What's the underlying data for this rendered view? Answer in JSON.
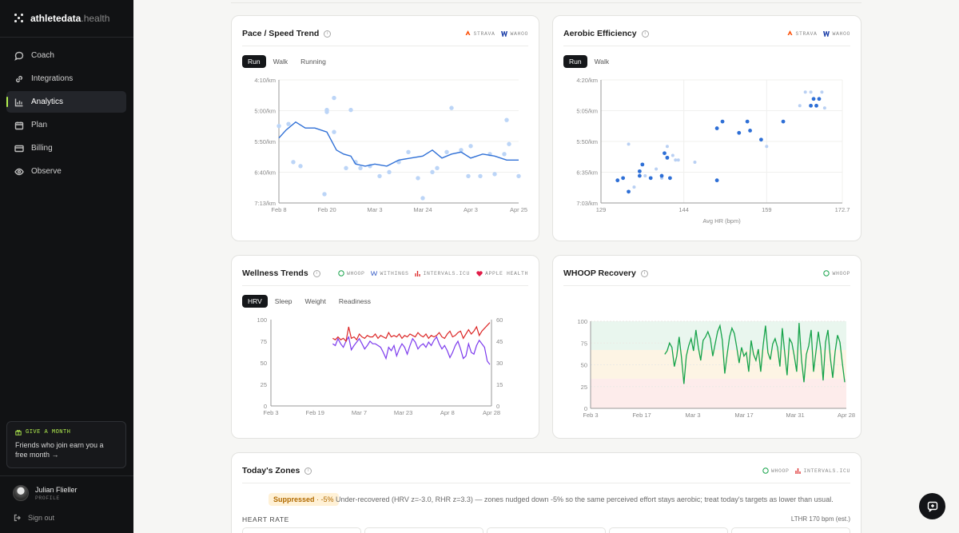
{
  "brand": {
    "name": "athletedata",
    "suffix": ".health"
  },
  "nav": {
    "items": [
      {
        "label": "Coach",
        "icon": "chat-bubble-icon",
        "active": false
      },
      {
        "label": "Integrations",
        "icon": "link-icon",
        "active": false
      },
      {
        "label": "Analytics",
        "icon": "bar-chart-icon",
        "active": true
      },
      {
        "label": "Plan",
        "icon": "calendar-icon",
        "active": false
      },
      {
        "label": "Billing",
        "icon": "credit-card-icon",
        "active": false
      },
      {
        "label": "Observe",
        "icon": "eye-icon",
        "active": false
      }
    ]
  },
  "promo": {
    "heading": "GIVE A MONTH",
    "text": "Friends who join earn you a free month →"
  },
  "user": {
    "name": "Julian Flieller",
    "role": "PROFILE"
  },
  "signout": "Sign out",
  "colors": {
    "accent": "#b3f050",
    "pace": "#2e6fd6",
    "pace_points": "#bcd5f7",
    "hrv": "#7c3aed",
    "rhr": "#dc2626",
    "recovery": "#16a34a"
  },
  "pace": {
    "title": "Pace / Speed Trend",
    "sources": [
      "STRAVA",
      "WAHOO"
    ],
    "tabs": [
      "Run",
      "Walk",
      "Running"
    ]
  },
  "aerobic": {
    "title": "Aerobic Efficiency",
    "sources": [
      "STRAVA",
      "WAHOO"
    ],
    "tabs": [
      "Run",
      "Walk"
    ],
    "xlabel": "Avg HR (bpm)"
  },
  "wellness": {
    "title": "Wellness Trends",
    "sources": [
      "WHOOP",
      "WITHINGS",
      "INTERVALS.ICU",
      "APPLE HEALTH"
    ],
    "tabs": [
      "HRV",
      "Sleep",
      "Weight",
      "Readiness"
    ]
  },
  "recovery": {
    "title": "WHOOP Recovery",
    "sources": [
      "WHOOP"
    ]
  },
  "zones": {
    "title": "Today's Zones",
    "sources": [
      "WHOOP",
      "INTERVALS.ICU"
    ],
    "badge_label": "Suppressed",
    "badge_value": "· -5%",
    "note": "Under-recovered (HRV z=-3.0, RHR z=3.3) — zones nudged down -5% so the same perceived effort stays aerobic; treat today's targets as lower than usual.",
    "hr_label": "HEART RATE",
    "lthr": "LTHR 170 bpm (est.)"
  },
  "chart_data": [
    {
      "type": "line",
      "title": "Pace / Speed Trend",
      "x_ticks": [
        "Feb 8",
        "Feb 20",
        "Mar 3",
        "Mar 24",
        "Apr 3",
        "Apr 25"
      ],
      "y_ticks": [
        "4:10/km",
        "5:00/km",
        "5:50/km",
        "6:40/km",
        "7:13/km"
      ],
      "ylim": [
        "4:10/km",
        "7:13/km"
      ],
      "scatter": [
        [
          0,
          5.3
        ],
        [
          0.04,
          5.25
        ],
        [
          0.2,
          4.9
        ],
        [
          0.3,
          4.9
        ],
        [
          0.2,
          4.95
        ],
        [
          0.23,
          4.6
        ],
        [
          0.06,
          6.2
        ],
        [
          0.09,
          6.3
        ],
        [
          0.19,
          7.0
        ],
        [
          0.23,
          5.45
        ],
        [
          0.28,
          6.35
        ],
        [
          0.32,
          6.2
        ],
        [
          0.34,
          6.35
        ],
        [
          0.38,
          6.3
        ],
        [
          0.42,
          6.55
        ],
        [
          0.46,
          6.45
        ],
        [
          0.5,
          6.2
        ],
        [
          0.54,
          5.95
        ],
        [
          0.58,
          6.6
        ],
        [
          0.6,
          7.1
        ],
        [
          0.64,
          6.45
        ],
        [
          0.66,
          6.35
        ],
        [
          0.7,
          5.95
        ],
        [
          0.72,
          4.85
        ],
        [
          0.76,
          5.9
        ],
        [
          0.79,
          6.55
        ],
        [
          0.8,
          5.8
        ],
        [
          0.84,
          6.55
        ],
        [
          0.88,
          6.0
        ],
        [
          0.9,
          6.5
        ],
        [
          0.94,
          6.0
        ],
        [
          0.96,
          5.75
        ],
        [
          1.0,
          6.55
        ],
        [
          0.95,
          5.15
        ]
      ],
      "trend": [
        [
          0,
          5.6
        ],
        [
          0.03,
          5.4
        ],
        [
          0.07,
          5.2
        ],
        [
          0.11,
          5.35
        ],
        [
          0.15,
          5.35
        ],
        [
          0.2,
          5.45
        ],
        [
          0.24,
          5.9
        ],
        [
          0.27,
          6.0
        ],
        [
          0.3,
          6.05
        ],
        [
          0.32,
          6.25
        ],
        [
          0.36,
          6.3
        ],
        [
          0.4,
          6.25
        ],
        [
          0.45,
          6.3
        ],
        [
          0.5,
          6.15
        ],
        [
          0.55,
          6.1
        ],
        [
          0.6,
          6.05
        ],
        [
          0.64,
          5.9
        ],
        [
          0.68,
          6.1
        ],
        [
          0.72,
          6.0
        ],
        [
          0.76,
          5.95
        ],
        [
          0.8,
          6.1
        ],
        [
          0.85,
          6.0
        ],
        [
          0.9,
          6.05
        ],
        [
          0.95,
          6.15
        ],
        [
          1.0,
          6.15
        ]
      ]
    },
    {
      "type": "scatter",
      "title": "Aerobic Efficiency",
      "xlabel": "Avg HR (bpm)",
      "x_ticks": [
        "129",
        "144",
        "159",
        "172.7"
      ],
      "y_ticks": [
        "4:20/km",
        "5:05/km",
        "5:50/km",
        "6:35/km",
        "7:03/km"
      ],
      "xlim": [
        129,
        172.7
      ],
      "points_dark": [
        [
          132,
          6.55
        ],
        [
          133,
          6.5
        ],
        [
          134,
          6.8
        ],
        [
          136,
          6.35
        ],
        [
          136.5,
          6.2
        ],
        [
          136,
          6.45
        ],
        [
          138,
          6.5
        ],
        [
          140,
          6.45
        ],
        [
          141.5,
          6.5
        ],
        [
          141,
          6.05
        ],
        [
          140.5,
          5.95
        ],
        [
          150,
          5.4
        ],
        [
          150,
          6.55
        ],
        [
          151,
          5.25
        ],
        [
          154,
          5.5
        ],
        [
          156,
          5.45
        ],
        [
          155.5,
          5.25
        ],
        [
          158,
          5.65
        ],
        [
          162,
          5.25
        ],
        [
          167,
          4.9
        ],
        [
          168,
          4.9
        ],
        [
          167.5,
          4.75
        ],
        [
          168.5,
          4.75
        ]
      ],
      "points_light": [
        [
          134,
          5.75
        ],
        [
          135,
          6.7
        ],
        [
          137,
          6.45
        ],
        [
          139,
          6.3
        ],
        [
          140,
          6.5
        ],
        [
          141,
          5.8
        ],
        [
          142,
          6.0
        ],
        [
          142.5,
          6.1
        ],
        [
          143,
          6.1
        ],
        [
          146,
          6.15
        ],
        [
          159,
          5.8
        ],
        [
          165,
          4.9
        ],
        [
          166,
          4.6
        ],
        [
          167,
          4.6
        ],
        [
          169,
          4.6
        ],
        [
          169.5,
          4.95
        ]
      ]
    },
    {
      "type": "line",
      "title": "Wellness Trends",
      "x_ticks": [
        "Feb 3",
        "Feb 19",
        "Mar 7",
        "Mar 23",
        "Apr 8",
        "Apr 28"
      ],
      "y_left_ticks": [
        0,
        25,
        50,
        75,
        100
      ],
      "y_right_ticks": [
        0,
        15,
        30,
        45,
        60
      ],
      "series": [
        {
          "name": "HRV",
          "axis": "left",
          "x_start": 0.28,
          "values": [
            72,
            70,
            78,
            72,
            68,
            75,
            80,
            65,
            70,
            74,
            78,
            72,
            66,
            70,
            75,
            72,
            72,
            70,
            68,
            62,
            55,
            68,
            64,
            70,
            58,
            66,
            72,
            68,
            60,
            70,
            78,
            74,
            66,
            70,
            72,
            68,
            74,
            70,
            76,
            80,
            72,
            66,
            70,
            64,
            56,
            62,
            70,
            75,
            66,
            55,
            58,
            72,
            62,
            60,
            70,
            76,
            72,
            68,
            52,
            48
          ]
        },
        {
          "name": "RHR",
          "axis": "right",
          "x_start": 0.28,
          "values": [
            47,
            46,
            48,
            46,
            47,
            45,
            55,
            47,
            48,
            46,
            50,
            48,
            47,
            49,
            48,
            48,
            50,
            47,
            49,
            48,
            47,
            51,
            48,
            49,
            48,
            50,
            47,
            49,
            48,
            50,
            49,
            48,
            51,
            49,
            48,
            50,
            47,
            49,
            48,
            49,
            51,
            48,
            47,
            50,
            52,
            48,
            49,
            51,
            52,
            47,
            50,
            53,
            50,
            52,
            55,
            49,
            52,
            54,
            56,
            58
          ]
        }
      ]
    },
    {
      "type": "line",
      "title": "WHOOP Recovery",
      "x_ticks": [
        "Feb 3",
        "Feb 17",
        "Mar 3",
        "Mar 17",
        "Mar 31",
        "Apr 28"
      ],
      "y_ticks": [
        0,
        25,
        50,
        75,
        100
      ],
      "series": [
        {
          "name": "Recovery",
          "x_start": 0.29,
          "values": [
            62,
            66,
            75,
            70,
            48,
            60,
            82,
            58,
            28,
            60,
            72,
            80,
            66,
            90,
            70,
            55,
            78,
            82,
            88,
            80,
            60,
            74,
            88,
            95,
            78,
            40,
            62,
            82,
            92,
            86,
            70,
            52,
            70,
            60,
            64,
            42,
            78,
            62,
            55,
            68,
            42,
            72,
            95,
            64,
            56,
            74,
            80,
            70,
            48,
            92,
            64,
            38,
            80,
            75,
            60,
            42,
            98,
            55,
            30,
            62,
            72,
            90,
            42,
            65,
            88,
            68,
            32,
            76,
            90,
            58,
            35,
            65,
            84,
            76,
            52,
            30
          ]
        }
      ]
    }
  ]
}
